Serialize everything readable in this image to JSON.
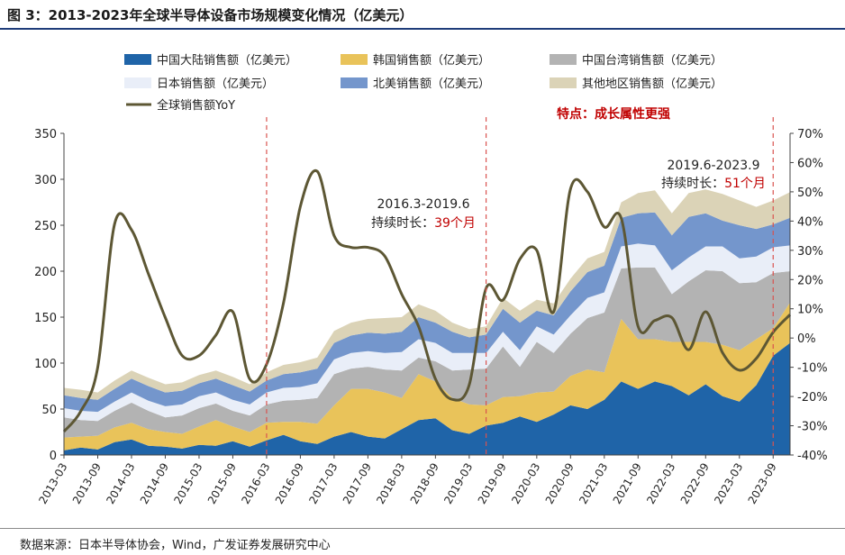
{
  "figure": {
    "title": "图 3：2013-2023年全球半导体设备市场规模变化情况（亿美元）",
    "source": "数据来源：日本半导体协会，Wind，广发证券发展研究中心"
  },
  "colors": {
    "cn": "#1f64a8",
    "kr": "#e9c35a",
    "tw": "#b3b3b3",
    "jp": "#e9eef8",
    "na": "#7496cc",
    "other": "#dbd3b7",
    "yoy": "#5d5734",
    "dashed": "#d9534f",
    "red_text": "#c00000"
  },
  "chart_data": {
    "type": "area",
    "legend_position": "top",
    "grid": false,
    "x": [
      "2013-03",
      "2013-06",
      "2013-09",
      "2013-12",
      "2014-03",
      "2014-06",
      "2014-09",
      "2014-12",
      "2015-03",
      "2015-06",
      "2015-09",
      "2015-12",
      "2016-03",
      "2016-06",
      "2016-09",
      "2016-12",
      "2017-03",
      "2017-06",
      "2017-09",
      "2017-12",
      "2018-03",
      "2018-06",
      "2018-09",
      "2018-12",
      "2019-03",
      "2019-06",
      "2019-09",
      "2019-12",
      "2020-03",
      "2020-06",
      "2020-09",
      "2020-12",
      "2021-03",
      "2021-06",
      "2021-09",
      "2021-12",
      "2022-03",
      "2022-06",
      "2022-09",
      "2022-12",
      "2023-03",
      "2023-06",
      "2023-09",
      "2023-12"
    ],
    "x_tick_labels": [
      "2013-03",
      "2013-09",
      "2014-03",
      "2014-09",
      "2015-03",
      "2015-09",
      "2016-03",
      "2016-09",
      "2017-03",
      "2017-09",
      "2018-03",
      "2018-09",
      "2019-03",
      "2019-09",
      "2020-03",
      "2020-09",
      "2021-03",
      "2021-09",
      "2022-03",
      "2022-09",
      "2023-03",
      "2023-09"
    ],
    "y_left": {
      "ylim": [
        0,
        350
      ],
      "ticks": [
        0,
        50,
        100,
        150,
        200,
        250,
        300,
        350
      ]
    },
    "y_right": {
      "ylim": [
        -40,
        70
      ],
      "ticks": [
        "-40%",
        "-30%",
        "-20%",
        "-10%",
        "0%",
        "10%",
        "20%",
        "30%",
        "40%",
        "50%",
        "60%",
        "70%"
      ]
    },
    "series": [
      {
        "name": "中国大陆销售额（亿美元）",
        "key": "cn",
        "axis": "left",
        "values": [
          5,
          8,
          6,
          14,
          17,
          10,
          9,
          7,
          11,
          10,
          15,
          9,
          16,
          22,
          15,
          12,
          20,
          25,
          20,
          18,
          28,
          38,
          40,
          27,
          23,
          32,
          35,
          42,
          36,
          44,
          54,
          50,
          60,
          80,
          72,
          80,
          75,
          65,
          77,
          64,
          58,
          76,
          108,
          122
        ]
      },
      {
        "name": "韩国销售额（亿美元）",
        "key": "kr",
        "axis": "left",
        "values": [
          14,
          12,
          15,
          16,
          18,
          18,
          16,
          16,
          20,
          28,
          16,
          16,
          19,
          14,
          21,
          22,
          34,
          47,
          52,
          50,
          34,
          50,
          40,
          35,
          32,
          22,
          28,
          22,
          32,
          25,
          32,
          43,
          30,
          68,
          54,
          46,
          48,
          58,
          46,
          56,
          56,
          50,
          30,
          44
        ]
      },
      {
        "name": "中国台湾销售额（亿美元）",
        "key": "tw",
        "axis": "left",
        "values": [
          22,
          18,
          16,
          18,
          22,
          20,
          16,
          20,
          20,
          18,
          17,
          18,
          20,
          23,
          24,
          28,
          34,
          22,
          24,
          25,
          30,
          18,
          22,
          30,
          38,
          40,
          55,
          32,
          55,
          42,
          46,
          56,
          65,
          55,
          78,
          78,
          52,
          66,
          78,
          80,
          73,
          62,
          60,
          34
        ]
      },
      {
        "name": "日本销售额（亿美元）",
        "key": "jp",
        "axis": "left",
        "values": [
          10,
          10,
          10,
          10,
          11,
          11,
          12,
          12,
          13,
          12,
          12,
          12,
          13,
          14,
          14,
          16,
          16,
          17,
          17,
          18,
          20,
          20,
          20,
          19,
          18,
          17,
          16,
          18,
          17,
          20,
          20,
          22,
          22,
          24,
          26,
          24,
          26,
          26,
          26,
          27,
          27,
          28,
          28,
          28
        ]
      },
      {
        "name": "北美销售额（亿美元）",
        "key": "na",
        "axis": "left",
        "values": [
          14,
          14,
          13,
          14,
          15,
          16,
          15,
          15,
          14,
          15,
          16,
          14,
          13,
          15,
          16,
          16,
          18,
          19,
          20,
          21,
          22,
          24,
          22,
          23,
          17,
          20,
          25,
          30,
          17,
          21,
          26,
          28,
          29,
          31,
          33,
          36,
          38,
          44,
          36,
          28,
          36,
          30,
          25,
          30
        ]
      },
      {
        "name": "其他地区销售额（亿美元）",
        "key": "other",
        "axis": "left",
        "values": [
          8,
          9,
          8,
          9,
          9,
          9,
          9,
          9,
          9,
          9,
          9,
          8,
          9,
          10,
          11,
          12,
          13,
          14,
          15,
          17,
          16,
          14,
          13,
          10,
          9,
          9,
          12,
          13,
          12,
          13,
          14,
          15,
          15,
          17,
          22,
          24,
          24,
          26,
          26,
          29,
          27,
          24,
          26,
          28
        ]
      },
      {
        "name": "全球销售额YoY",
        "key": "yoy",
        "axis": "right",
        "type": "line",
        "values": [
          -32,
          -25,
          -10,
          39,
          37,
          22,
          7,
          -6,
          -6,
          1,
          9,
          -14,
          -9,
          12,
          45,
          57,
          35,
          31,
          31,
          28,
          15,
          4,
          -14,
          -21,
          -16,
          17,
          13,
          27,
          30,
          9,
          51,
          50,
          38,
          41,
          4,
          6,
          7,
          -4,
          9,
          -5,
          -11,
          -7,
          2,
          8
        ]
      }
    ],
    "annotations": [
      {
        "label": "特点：成长属性更强"
      },
      {
        "period": "2016.3-2019.6",
        "text_prefix": "持续时长：",
        "text_value": "39个月"
      },
      {
        "period": "2019.6-2023.9",
        "text_prefix": "持续时长：",
        "text_value": "51个月"
      }
    ],
    "dashed_lines_at": [
      "2016-03",
      "2019-06",
      "2023-09"
    ]
  }
}
